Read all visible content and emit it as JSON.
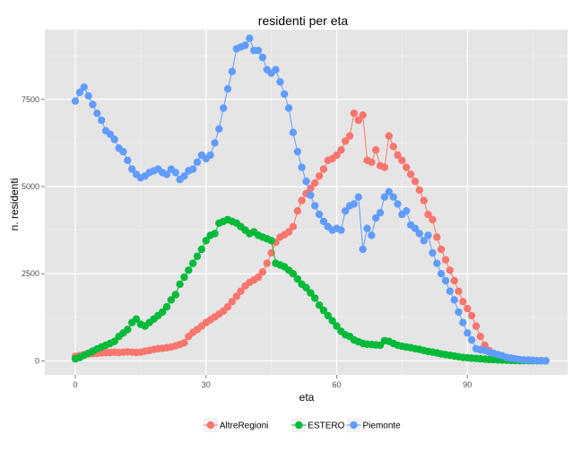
{
  "chart_data": {
    "type": "scatter",
    "title": "residenti per eta",
    "xlabel": "eta",
    "ylabel": "n. residenti",
    "xlim": [
      -7,
      113
    ],
    "ylim": [
      -400,
      9500
    ],
    "x_ticks": [
      0,
      30,
      60,
      90
    ],
    "y_ticks": [
      0,
      2500,
      5000,
      7500
    ],
    "x_tick_labels": [
      "0",
      "30",
      "60",
      "90"
    ],
    "y_tick_labels": [
      "0",
      "2500",
      "5000",
      "7500"
    ],
    "grid": true,
    "legend_position": "bottom",
    "series": [
      {
        "name": "AltreRegioni",
        "color": "#F8766D",
        "points": [
          [
            0,
            130
          ],
          [
            1,
            150
          ],
          [
            2,
            180
          ],
          [
            3,
            200
          ],
          [
            4,
            210
          ],
          [
            5,
            220
          ],
          [
            6,
            230
          ],
          [
            7,
            240
          ],
          [
            8,
            240
          ],
          [
            9,
            250
          ],
          [
            10,
            240
          ],
          [
            11,
            250
          ],
          [
            12,
            260
          ],
          [
            13,
            250
          ],
          [
            14,
            240
          ],
          [
            15,
            250
          ],
          [
            16,
            280
          ],
          [
            17,
            300
          ],
          [
            18,
            330
          ],
          [
            19,
            350
          ],
          [
            20,
            360
          ],
          [
            21,
            380
          ],
          [
            22,
            400
          ],
          [
            23,
            430
          ],
          [
            24,
            470
          ],
          [
            25,
            520
          ],
          [
            26,
            700
          ],
          [
            27,
            820
          ],
          [
            28,
            900
          ],
          [
            29,
            1000
          ],
          [
            30,
            1100
          ],
          [
            31,
            1180
          ],
          [
            32,
            1260
          ],
          [
            33,
            1340
          ],
          [
            34,
            1430
          ],
          [
            35,
            1550
          ],
          [
            36,
            1700
          ],
          [
            37,
            1850
          ],
          [
            38,
            2000
          ],
          [
            39,
            2150
          ],
          [
            40,
            2250
          ],
          [
            41,
            2320
          ],
          [
            42,
            2400
          ],
          [
            43,
            2550
          ],
          [
            44,
            2800
          ],
          [
            45,
            3100
          ],
          [
            46,
            3400
          ],
          [
            47,
            3550
          ],
          [
            48,
            3620
          ],
          [
            49,
            3700
          ],
          [
            50,
            3850
          ],
          [
            51,
            4300
          ],
          [
            52,
            4600
          ],
          [
            53,
            4800
          ],
          [
            54,
            4950
          ],
          [
            55,
            5100
          ],
          [
            56,
            5300
          ],
          [
            57,
            5500
          ],
          [
            58,
            5750
          ],
          [
            59,
            5800
          ],
          [
            60,
            5900
          ],
          [
            61,
            6050
          ],
          [
            62,
            6300
          ],
          [
            63,
            6450
          ],
          [
            64,
            7100
          ],
          [
            65,
            6900
          ],
          [
            66,
            7050
          ],
          [
            67,
            5750
          ],
          [
            68,
            5700
          ],
          [
            69,
            6050
          ],
          [
            70,
            5600
          ],
          [
            71,
            5550
          ],
          [
            72,
            6450
          ],
          [
            73,
            6150
          ],
          [
            74,
            5900
          ],
          [
            75,
            5750
          ],
          [
            76,
            5550
          ],
          [
            77,
            5350
          ],
          [
            78,
            5150
          ],
          [
            79,
            4900
          ],
          [
            80,
            4600
          ],
          [
            81,
            4200
          ],
          [
            82,
            4050
          ],
          [
            83,
            3550
          ],
          [
            84,
            3200
          ],
          [
            85,
            2900
          ],
          [
            86,
            2600
          ],
          [
            87,
            2300
          ],
          [
            88,
            2000
          ],
          [
            89,
            1700
          ],
          [
            90,
            1500
          ],
          [
            91,
            1300
          ],
          [
            92,
            1000
          ],
          [
            93,
            700
          ],
          [
            94,
            450
          ],
          [
            95,
            300
          ],
          [
            96,
            220
          ],
          [
            97,
            160
          ],
          [
            98,
            110
          ],
          [
            99,
            80
          ],
          [
            100,
            60
          ],
          [
            101,
            40
          ],
          [
            102,
            30
          ],
          [
            103,
            20
          ],
          [
            104,
            15
          ],
          [
            105,
            10
          ],
          [
            106,
            8
          ],
          [
            107,
            5
          ],
          [
            108,
            3
          ]
        ]
      },
      {
        "name": "ESTERO",
        "color": "#00BA38",
        "points": [
          [
            0,
            60
          ],
          [
            1,
            100
          ],
          [
            2,
            160
          ],
          [
            3,
            220
          ],
          [
            4,
            280
          ],
          [
            5,
            340
          ],
          [
            6,
            400
          ],
          [
            7,
            450
          ],
          [
            8,
            500
          ],
          [
            9,
            560
          ],
          [
            10,
            700
          ],
          [
            11,
            800
          ],
          [
            12,
            900
          ],
          [
            13,
            1100
          ],
          [
            14,
            1200
          ],
          [
            15,
            1050
          ],
          [
            16,
            1000
          ],
          [
            17,
            1100
          ],
          [
            18,
            1200
          ],
          [
            19,
            1300
          ],
          [
            20,
            1400
          ],
          [
            21,
            1550
          ],
          [
            22,
            1750
          ],
          [
            23,
            1900
          ],
          [
            24,
            2200
          ],
          [
            25,
            2400
          ],
          [
            26,
            2600
          ],
          [
            27,
            2800
          ],
          [
            28,
            3000
          ],
          [
            29,
            3200
          ],
          [
            30,
            3450
          ],
          [
            31,
            3600
          ],
          [
            32,
            3650
          ],
          [
            33,
            3950
          ],
          [
            34,
            4000
          ],
          [
            35,
            4050
          ],
          [
            36,
            4000
          ],
          [
            37,
            3950
          ],
          [
            38,
            3850
          ],
          [
            39,
            3750
          ],
          [
            40,
            3650
          ],
          [
            41,
            3700
          ],
          [
            42,
            3600
          ],
          [
            43,
            3550
          ],
          [
            44,
            3500
          ],
          [
            45,
            3450
          ],
          [
            46,
            2800
          ],
          [
            47,
            2750
          ],
          [
            48,
            2700
          ],
          [
            49,
            2600
          ],
          [
            50,
            2500
          ],
          [
            51,
            2350
          ],
          [
            52,
            2200
          ],
          [
            53,
            2100
          ],
          [
            54,
            1950
          ],
          [
            55,
            1800
          ],
          [
            56,
            1600
          ],
          [
            57,
            1450
          ],
          [
            58,
            1300
          ],
          [
            59,
            1150
          ],
          [
            60,
            1000
          ],
          [
            61,
            850
          ],
          [
            62,
            750
          ],
          [
            63,
            700
          ],
          [
            64,
            600
          ],
          [
            65,
            550
          ],
          [
            66,
            500
          ],
          [
            67,
            480
          ],
          [
            68,
            470
          ],
          [
            69,
            460
          ],
          [
            70,
            450
          ],
          [
            71,
            580
          ],
          [
            72,
            560
          ],
          [
            73,
            500
          ],
          [
            74,
            450
          ],
          [
            75,
            420
          ],
          [
            76,
            400
          ],
          [
            77,
            380
          ],
          [
            78,
            350
          ],
          [
            79,
            330
          ],
          [
            80,
            300
          ],
          [
            81,
            270
          ],
          [
            82,
            250
          ],
          [
            83,
            230
          ],
          [
            84,
            200
          ],
          [
            85,
            180
          ],
          [
            86,
            160
          ],
          [
            87,
            140
          ],
          [
            88,
            120
          ],
          [
            89,
            100
          ],
          [
            90,
            90
          ],
          [
            91,
            80
          ],
          [
            92,
            70
          ],
          [
            93,
            60
          ],
          [
            94,
            50
          ],
          [
            95,
            40
          ],
          [
            96,
            35
          ],
          [
            97,
            30
          ],
          [
            98,
            25
          ],
          [
            99,
            20
          ],
          [
            100,
            15
          ],
          [
            101,
            12
          ],
          [
            102,
            10
          ],
          [
            103,
            8
          ],
          [
            104,
            6
          ],
          [
            105,
            5
          ],
          [
            106,
            4
          ],
          [
            107,
            3
          ],
          [
            108,
            2
          ]
        ]
      },
      {
        "name": "Piemonte",
        "color": "#619CFF",
        "points": [
          [
            0,
            7450
          ],
          [
            1,
            7700
          ],
          [
            2,
            7850
          ],
          [
            3,
            7600
          ],
          [
            4,
            7350
          ],
          [
            5,
            7100
          ],
          [
            6,
            6900
          ],
          [
            7,
            6600
          ],
          [
            8,
            6500
          ],
          [
            9,
            6350
          ],
          [
            10,
            6100
          ],
          [
            11,
            6000
          ],
          [
            12,
            5750
          ],
          [
            13,
            5500
          ],
          [
            14,
            5350
          ],
          [
            15,
            5250
          ],
          [
            16,
            5300
          ],
          [
            17,
            5400
          ],
          [
            18,
            5450
          ],
          [
            19,
            5500
          ],
          [
            20,
            5400
          ],
          [
            21,
            5350
          ],
          [
            22,
            5500
          ],
          [
            23,
            5400
          ],
          [
            24,
            5200
          ],
          [
            25,
            5300
          ],
          [
            26,
            5450
          ],
          [
            27,
            5500
          ],
          [
            28,
            5700
          ],
          [
            29,
            5900
          ],
          [
            30,
            5800
          ],
          [
            31,
            5900
          ],
          [
            32,
            6250
          ],
          [
            33,
            6650
          ],
          [
            34,
            7250
          ],
          [
            35,
            7800
          ],
          [
            36,
            8300
          ],
          [
            37,
            8950
          ],
          [
            38,
            9000
          ],
          [
            39,
            9050
          ],
          [
            40,
            9250
          ],
          [
            41,
            8900
          ],
          [
            42,
            8900
          ],
          [
            43,
            8700
          ],
          [
            44,
            8350
          ],
          [
            45,
            8250
          ],
          [
            46,
            8350
          ],
          [
            47,
            8000
          ],
          [
            48,
            7650
          ],
          [
            49,
            7250
          ],
          [
            50,
            6550
          ],
          [
            51,
            6000
          ],
          [
            52,
            5550
          ],
          [
            53,
            5150
          ],
          [
            54,
            4750
          ],
          [
            55,
            4450
          ],
          [
            56,
            4200
          ],
          [
            57,
            4000
          ],
          [
            58,
            3850
          ],
          [
            59,
            3750
          ],
          [
            60,
            3800
          ],
          [
            61,
            3750
          ],
          [
            62,
            4300
          ],
          [
            63,
            4450
          ],
          [
            64,
            4500
          ],
          [
            65,
            4700
          ],
          [
            66,
            3200
          ],
          [
            67,
            3800
          ],
          [
            68,
            3600
          ],
          [
            69,
            4100
          ],
          [
            70,
            4250
          ],
          [
            71,
            4700
          ],
          [
            72,
            4850
          ],
          [
            73,
            4700
          ],
          [
            74,
            4500
          ],
          [
            75,
            4200
          ],
          [
            76,
            4300
          ],
          [
            77,
            3900
          ],
          [
            78,
            3800
          ],
          [
            79,
            3650
          ],
          [
            80,
            3450
          ],
          [
            81,
            3600
          ],
          [
            82,
            3100
          ],
          [
            83,
            2800
          ],
          [
            84,
            2500
          ],
          [
            85,
            2300
          ],
          [
            86,
            2000
          ],
          [
            87,
            1750
          ],
          [
            88,
            1400
          ],
          [
            89,
            1100
          ],
          [
            90,
            800
          ],
          [
            91,
            600
          ],
          [
            92,
            350
          ],
          [
            93,
            320
          ],
          [
            94,
            300
          ],
          [
            95,
            250
          ],
          [
            96,
            220
          ],
          [
            97,
            180
          ],
          [
            98,
            150
          ],
          [
            99,
            100
          ],
          [
            100,
            80
          ],
          [
            101,
            60
          ],
          [
            102,
            40
          ],
          [
            103,
            30
          ],
          [
            104,
            25
          ],
          [
            105,
            20
          ],
          [
            106,
            10
          ],
          [
            107,
            5
          ],
          [
            108,
            3
          ]
        ]
      }
    ]
  }
}
